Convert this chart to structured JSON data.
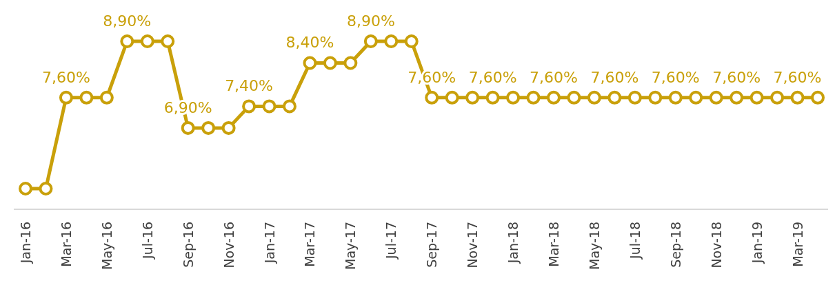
{
  "chart_data": {
    "type": "line",
    "categories": [
      "Jan-16",
      null,
      "Mar-16",
      null,
      "May-16",
      null,
      "Jul-16",
      null,
      "Sep-16",
      null,
      "Nov-16",
      null,
      "Jan-17",
      null,
      "Mar-17",
      null,
      "May-17",
      null,
      "Jul-17",
      null,
      "Sep-17",
      null,
      "Nov-17",
      null,
      "Jan-18",
      null,
      "Mar-18",
      null,
      "May-18",
      null,
      "Jul-18",
      null,
      "Sep-18",
      null,
      "Nov-18",
      null,
      "Jan-19",
      null,
      "Mar-19",
      null
    ],
    "series": [
      {
        "color": "#c9a00a",
        "values": [
          5.5,
          5.5,
          7.6,
          7.6,
          7.6,
          8.9,
          8.9,
          8.9,
          6.9,
          6.9,
          6.9,
          7.4,
          7.4,
          7.4,
          8.4,
          8.4,
          8.4,
          8.9,
          8.9,
          8.9,
          7.6,
          7.6,
          7.6,
          7.6,
          7.6,
          7.6,
          7.6,
          7.6,
          7.6,
          7.6,
          7.6,
          7.6,
          7.6,
          7.6,
          7.6,
          7.6,
          7.6,
          7.6,
          7.6,
          7.6
        ],
        "value_labels": [
          null,
          null,
          "7,60%",
          null,
          null,
          "8,90%",
          null,
          null,
          "6,90%",
          null,
          null,
          "7,40%",
          null,
          null,
          "8,40%",
          null,
          null,
          "8,90%",
          null,
          null,
          "7,60%",
          null,
          null,
          "7,60%",
          null,
          null,
          "7,60%",
          null,
          null,
          "7,60%",
          null,
          null,
          "7,60%",
          null,
          null,
          "7,60%",
          null,
          null,
          "7,60%",
          null
        ]
      }
    ],
    "grid": false,
    "legend": false,
    "marker": "circle",
    "line_style": "solid",
    "tick_labels": "x"
  }
}
